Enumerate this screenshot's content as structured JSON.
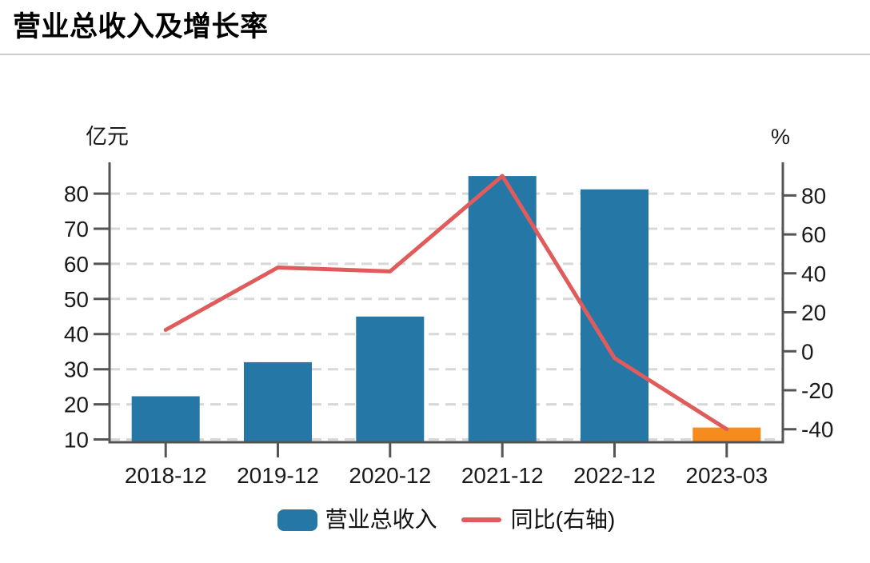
{
  "header": {
    "title": "营业总收入及增长率"
  },
  "chart_data": {
    "type": "bar",
    "subtype": "bar-line-combo",
    "title": "营业总收入及增长率",
    "categories": [
      "2018-12",
      "2019-12",
      "2020-12",
      "2021-12",
      "2022-12",
      "2023-03"
    ],
    "series": [
      {
        "name": "营业总收入",
        "type": "bar",
        "axis": "left",
        "unit": "亿元",
        "values": [
          22.3,
          32,
          45,
          85,
          81.2,
          13.4
        ],
        "bar_colors": [
          "#2577a5",
          "#2577a5",
          "#2577a5",
          "#2577a5",
          "#2577a5",
          "#f68c1e"
        ]
      },
      {
        "name": "同比(右轴)",
        "type": "line",
        "axis": "right",
        "unit": "%",
        "values": [
          11,
          43,
          41,
          90,
          -3.5,
          -40
        ],
        "color": "#e05c5c"
      }
    ],
    "left_axis": {
      "unit": "亿元",
      "ticks": [
        80,
        70,
        60,
        50,
        40,
        30,
        20,
        10
      ],
      "min": 9.2,
      "max": 88.9
    },
    "right_axis": {
      "unit": "%",
      "ticks": [
        80,
        60,
        40,
        20,
        0,
        -20,
        -40
      ],
      "min": -46.7,
      "max": 97
    },
    "legend": [
      {
        "label": "营业总收入",
        "type": "bar",
        "color": "#2577a5"
      },
      {
        "label": "同比(右轴)",
        "type": "line",
        "color": "#e05c5c"
      }
    ],
    "grid": true,
    "legend_position": "bottom-center",
    "colors": {
      "bar": "#2577a5",
      "bar_last": "#f68c1e",
      "line": "#e05c5c",
      "grid": "#d8d8d8",
      "axis": "#555555",
      "text": "#1a1a1a",
      "title": "#000000",
      "separator": "#cccccc"
    }
  }
}
